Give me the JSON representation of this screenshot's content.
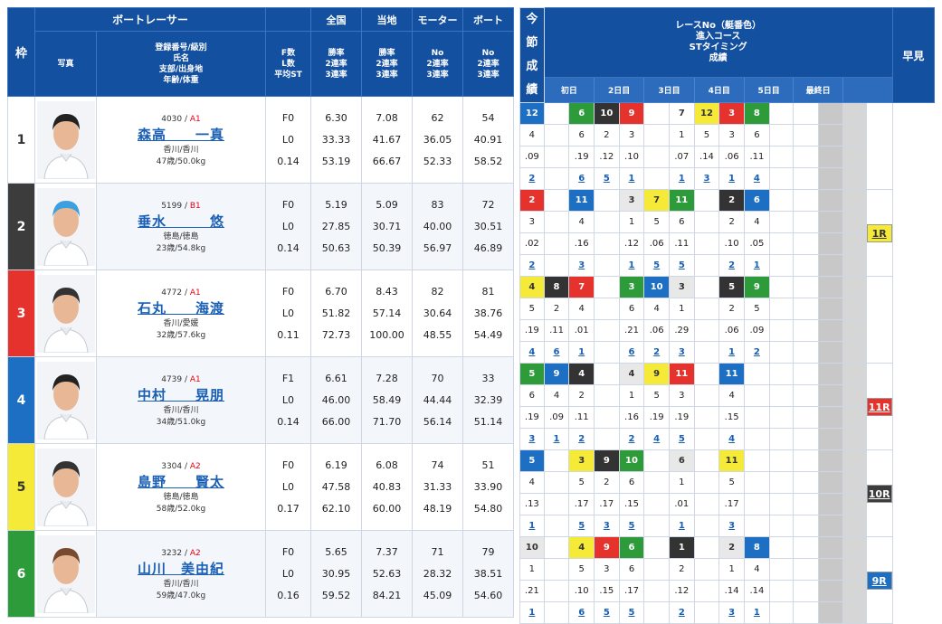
{
  "headers": {
    "waku": "枠",
    "photo": "写真",
    "racer_title": "ボートレーサー",
    "racer_sub": [
      "登録番号/級別",
      "氏名",
      "支部/出身地",
      "年齢/体重"
    ],
    "fl": [
      "F数",
      "L数",
      "平均ST"
    ],
    "zenkoku": "全国",
    "touchi": "当地",
    "motor": "モーター",
    "boat": "ボート",
    "rate3": [
      "勝率",
      "2連率",
      "3連率"
    ],
    "no3": [
      "No",
      "2連率",
      "3連率"
    ],
    "race_info": [
      "レースNo（艇番色）",
      "進入コース",
      "STタイミング",
      "成績"
    ],
    "days": [
      "初日",
      "2日目",
      "3日目",
      "4日目",
      "5日目",
      "最終日"
    ],
    "hayami": "早見",
    "konsetsu": [
      "今",
      "節",
      "成",
      "績"
    ]
  },
  "colors": {
    "waku": [
      "#ffffff",
      "#3c3c3c",
      "#e5322d",
      "#1d6fc4",
      "#f6ea38",
      "#2e9b3b"
    ],
    "header": "#1450a0"
  },
  "racers": [
    {
      "waku": "1",
      "reg": "4030",
      "cls": "A1",
      "name": "森高　　一真",
      "branch": "香川/香川",
      "age": "47歳/50.0kg",
      "f": "F0",
      "l": "L0",
      "st": "0.14",
      "z": [
        "6.30",
        "33.33",
        "53.19"
      ],
      "t": [
        "7.08",
        "41.67",
        "66.67"
      ],
      "m": [
        "62",
        "36.05",
        "52.33"
      ],
      "b": [
        "54",
        "40.91",
        "58.52"
      ],
      "hayami": "",
      "races": [
        {
          "no": "12",
          "c": "c4",
          "course": "4",
          "st": ".09",
          "rank": "2"
        },
        {
          "no": "",
          "c": "",
          "course": "",
          "st": "",
          "rank": ""
        },
        {
          "no": "6",
          "c": "c6",
          "course": "6",
          "st": ".19",
          "rank": "6"
        },
        {
          "no": "10",
          "c": "c2",
          "course": "2",
          "st": ".12",
          "rank": "5"
        },
        {
          "no": "9",
          "c": "c3",
          "course": "3",
          "st": ".10",
          "rank": "1"
        },
        {
          "no": "",
          "c": "",
          "course": "",
          "st": "",
          "rank": ""
        },
        {
          "no": "7",
          "c": "c1",
          "course": "1",
          "st": ".07",
          "rank": "1"
        },
        {
          "no": "12",
          "c": "c5",
          "course": "5",
          "st": ".14",
          "rank": "3"
        },
        {
          "no": "3",
          "c": "c3",
          "course": "3",
          "st": ".06",
          "rank": "1"
        },
        {
          "no": "8",
          "c": "c6",
          "course": "6",
          "st": ".11",
          "rank": "4"
        }
      ]
    },
    {
      "waku": "2",
      "reg": "5199",
      "cls": "B1",
      "name": "垂水　　　悠",
      "branch": "徳島/徳島",
      "age": "23歳/54.8kg",
      "f": "F0",
      "l": "L0",
      "st": "0.14",
      "z": [
        "5.19",
        "27.85",
        "50.63"
      ],
      "t": [
        "5.09",
        "30.71",
        "50.39"
      ],
      "m": [
        "83",
        "40.00",
        "56.97"
      ],
      "b": [
        "72",
        "30.51",
        "46.89"
      ],
      "hayami": "1R",
      "races": [
        {
          "no": "2",
          "c": "c3",
          "course": "3",
          "st": ".02",
          "rank": "2"
        },
        {
          "no": "",
          "c": "",
          "course": "",
          "st": "",
          "rank": ""
        },
        {
          "no": "11",
          "c": "c4",
          "course": "4",
          "st": ".16",
          "rank": "3"
        },
        {
          "no": "",
          "c": "",
          "course": "",
          "st": "",
          "rank": ""
        },
        {
          "no": "3",
          "c": "c7",
          "course": "1",
          "st": ".12",
          "rank": "1"
        },
        {
          "no": "7",
          "c": "c5",
          "course": "5",
          "st": ".06",
          "rank": "5"
        },
        {
          "no": "11",
          "c": "c6",
          "course": "6",
          "st": ".11",
          "rank": "5"
        },
        {
          "no": "",
          "c": "",
          "course": "",
          "st": "",
          "rank": ""
        },
        {
          "no": "2",
          "c": "c2",
          "course": "2",
          "st": ".10",
          "rank": "2"
        },
        {
          "no": "6",
          "c": "c4",
          "course": "4",
          "st": ".05",
          "rank": "1"
        }
      ]
    },
    {
      "waku": "3",
      "reg": "4772",
      "cls": "A1",
      "name": "石丸　　海渡",
      "branch": "香川/愛媛",
      "age": "32歳/57.6kg",
      "f": "F0",
      "l": "L0",
      "st": "0.11",
      "z": [
        "6.70",
        "51.82",
        "72.73"
      ],
      "t": [
        "8.43",
        "57.14",
        "100.00"
      ],
      "m": [
        "82",
        "30.64",
        "48.55"
      ],
      "b": [
        "81",
        "38.76",
        "54.49"
      ],
      "hayami": "",
      "races": [
        {
          "no": "4",
          "c": "c5",
          "course": "5",
          "st": ".19",
          "rank": "4"
        },
        {
          "no": "8",
          "c": "c2",
          "course": "2",
          "st": ".11",
          "rank": "6"
        },
        {
          "no": "7",
          "c": "c3",
          "course": "4",
          "st": ".01",
          "rank": "1"
        },
        {
          "no": "",
          "c": "",
          "course": "",
          "st": "",
          "rank": ""
        },
        {
          "no": "3",
          "c": "c6",
          "course": "6",
          "st": ".21",
          "rank": "6"
        },
        {
          "no": "10",
          "c": "c4",
          "course": "4",
          "st": ".06",
          "rank": "2"
        },
        {
          "no": "3",
          "c": "c7",
          "course": "1",
          "st": ".29",
          "rank": "3"
        },
        {
          "no": "",
          "c": "",
          "course": "",
          "st": "",
          "rank": ""
        },
        {
          "no": "5",
          "c": "c2",
          "course": "2",
          "st": ".06",
          "rank": "1"
        },
        {
          "no": "9",
          "c": "c6",
          "course": "5",
          "st": ".09",
          "rank": "2"
        }
      ]
    },
    {
      "waku": "4",
      "reg": "4739",
      "cls": "A1",
      "name": "中村　　晃朋",
      "branch": "香川/香川",
      "age": "34歳/51.0kg",
      "f": "F1",
      "l": "L0",
      "st": "0.14",
      "z": [
        "6.61",
        "46.00",
        "66.00"
      ],
      "t": [
        "7.28",
        "58.49",
        "71.70"
      ],
      "m": [
        "70",
        "44.44",
        "56.14"
      ],
      "b": [
        "33",
        "32.39",
        "51.14"
      ],
      "hayami": "11R",
      "races": [
        {
          "no": "5",
          "c": "c6",
          "course": "6",
          "st": ".19",
          "rank": "3"
        },
        {
          "no": "9",
          "c": "c4",
          "course": "4",
          "st": ".09",
          "rank": "1"
        },
        {
          "no": "4",
          "c": "c2",
          "course": "2",
          "st": ".11",
          "rank": "2"
        },
        {
          "no": "",
          "c": "",
          "course": "",
          "st": "",
          "rank": ""
        },
        {
          "no": "4",
          "c": "c7",
          "course": "1",
          "st": ".16",
          "rank": "2"
        },
        {
          "no": "9",
          "c": "c5",
          "course": "5",
          "st": ".19",
          "rank": "4"
        },
        {
          "no": "11",
          "c": "c3",
          "course": "3",
          "st": ".19",
          "rank": "5"
        },
        {
          "no": "",
          "c": "",
          "course": "",
          "st": "",
          "rank": ""
        },
        {
          "no": "11",
          "c": "c4",
          "course": "4",
          "st": ".15",
          "rank": "4"
        },
        {
          "no": "",
          "c": "",
          "course": "",
          "st": "",
          "rank": ""
        }
      ]
    },
    {
      "waku": "5",
      "reg": "3304",
      "cls": "A2",
      "name": "島野　　賢太",
      "branch": "徳島/徳島",
      "age": "58歳/52.0kg",
      "f": "F0",
      "l": "L0",
      "st": "0.17",
      "z": [
        "6.19",
        "47.58",
        "62.10"
      ],
      "t": [
        "6.08",
        "40.83",
        "60.00"
      ],
      "m": [
        "74",
        "31.33",
        "48.19"
      ],
      "b": [
        "51",
        "33.90",
        "54.80"
      ],
      "hayami": "10R",
      "races": [
        {
          "no": "5",
          "c": "c4",
          "course": "4",
          "st": ".13",
          "rank": "1"
        },
        {
          "no": "",
          "c": "",
          "course": "",
          "st": "",
          "rank": ""
        },
        {
          "no": "3",
          "c": "c5",
          "course": "5",
          "st": ".17",
          "rank": "5"
        },
        {
          "no": "9",
          "c": "c2",
          "course": "2",
          "st": ".17",
          "rank": "3"
        },
        {
          "no": "10",
          "c": "c6",
          "course": "6",
          "st": ".15",
          "rank": "5"
        },
        {
          "no": "",
          "c": "",
          "course": "",
          "st": "",
          "rank": ""
        },
        {
          "no": "6",
          "c": "c7",
          "course": "1",
          "st": ".01",
          "rank": "1"
        },
        {
          "no": "",
          "c": "",
          "course": "",
          "st": "",
          "rank": ""
        },
        {
          "no": "11",
          "c": "c5",
          "course": "5",
          "st": ".17",
          "rank": "3"
        },
        {
          "no": "",
          "c": "",
          "course": "",
          "st": "",
          "rank": ""
        }
      ]
    },
    {
      "waku": "6",
      "reg": "3232",
      "cls": "A2",
      "name": "山川　美由紀",
      "branch": "香川/香川",
      "age": "59歳/47.0kg",
      "f": "F0",
      "l": "L0",
      "st": "0.16",
      "z": [
        "5.65",
        "30.95",
        "59.52"
      ],
      "t": [
        "7.37",
        "52.63",
        "84.21"
      ],
      "m": [
        "71",
        "28.32",
        "45.09"
      ],
      "b": [
        "79",
        "38.51",
        "54.60"
      ],
      "hayami": "9R",
      "races": [
        {
          "no": "10",
          "c": "c7",
          "course": "1",
          "st": ".21",
          "rank": "1"
        },
        {
          "no": "",
          "c": "",
          "course": "",
          "st": "",
          "rank": ""
        },
        {
          "no": "4",
          "c": "c5",
          "course": "5",
          "st": ".10",
          "rank": "6"
        },
        {
          "no": "9",
          "c": "c3",
          "course": "3",
          "st": ".15",
          "rank": "5"
        },
        {
          "no": "6",
          "c": "c6",
          "course": "6",
          "st": ".17",
          "rank": "5"
        },
        {
          "no": "",
          "c": "",
          "course": "",
          "st": "",
          "rank": ""
        },
        {
          "no": "1",
          "c": "c2",
          "course": "2",
          "st": ".12",
          "rank": "2"
        },
        {
          "no": "",
          "c": "",
          "course": "",
          "st": "",
          "rank": ""
        },
        {
          "no": "2",
          "c": "c7",
          "course": "1",
          "st": ".14",
          "rank": "3"
        },
        {
          "no": "8",
          "c": "c4",
          "course": "4",
          "st": ".14",
          "rank": "1"
        }
      ]
    }
  ]
}
